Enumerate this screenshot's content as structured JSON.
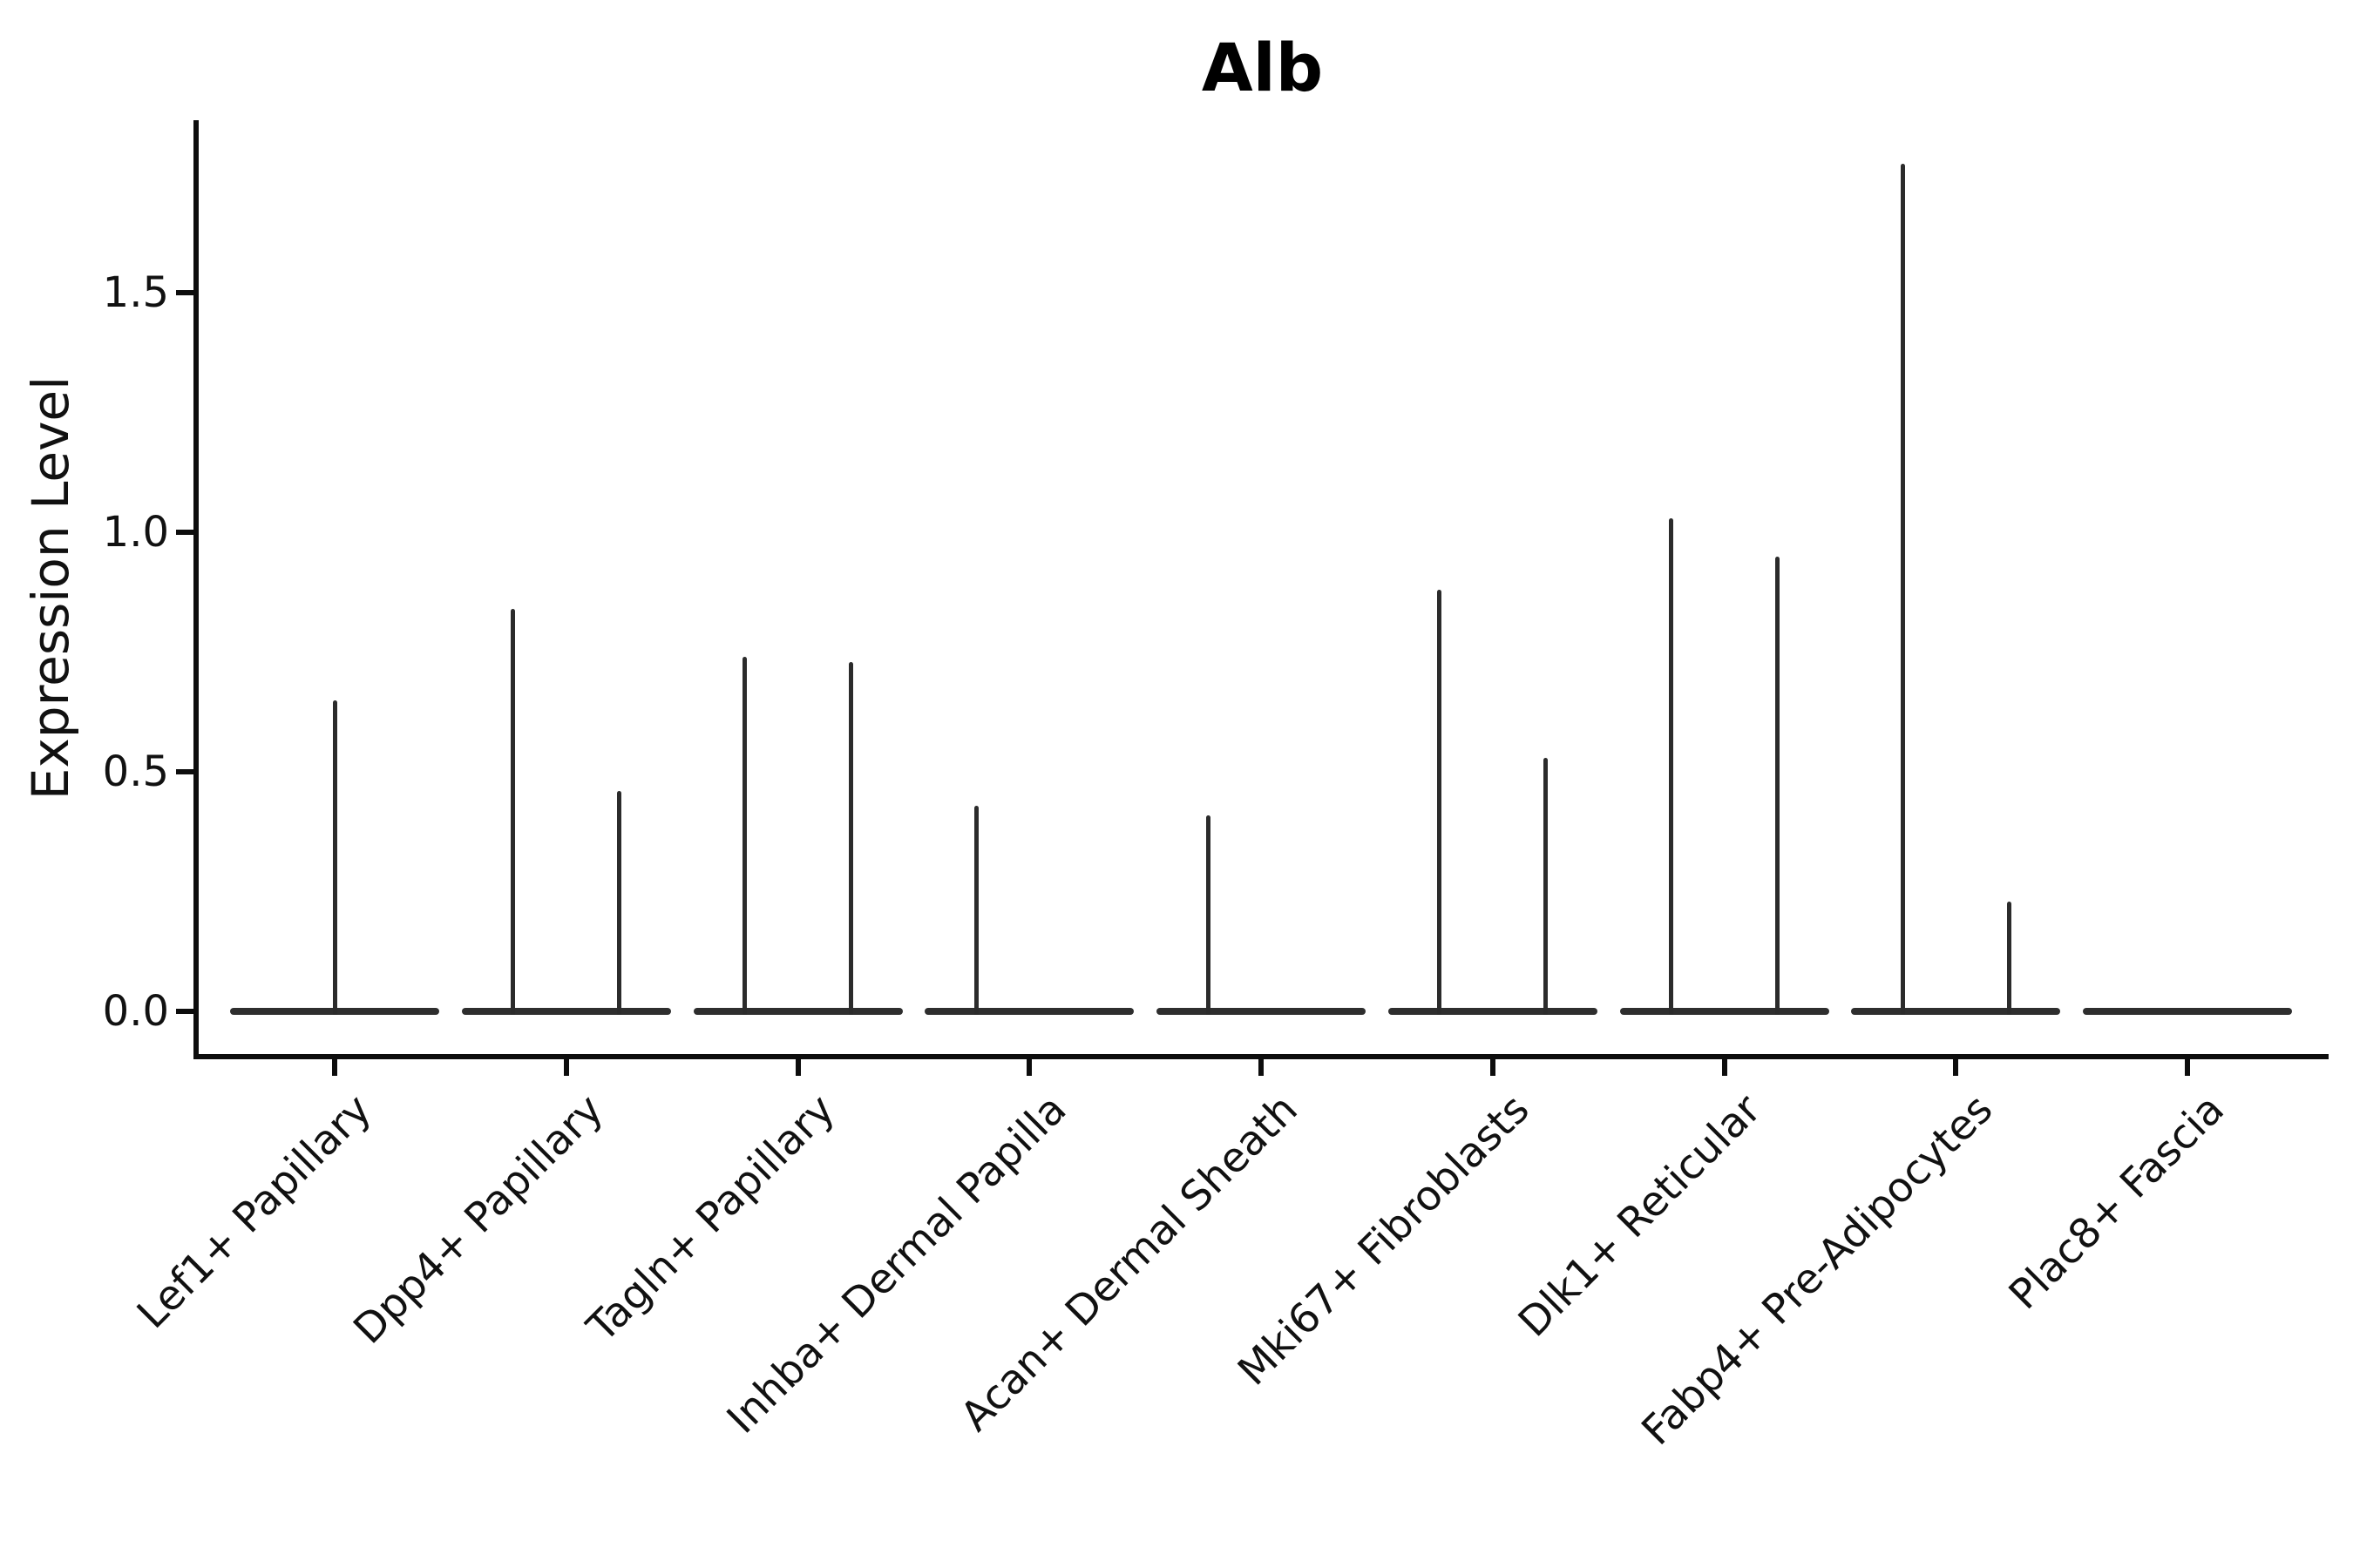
{
  "chart_data": {
    "type": "violin",
    "title": "Alb",
    "xlabel": "",
    "ylabel": "Expression Level",
    "y_ticks": [
      0.0,
      0.5,
      1.0,
      1.5
    ],
    "y_tick_labels": [
      "0.0",
      "0.5",
      "1.0",
      "1.5"
    ],
    "ylim": [
      -0.09,
      1.86
    ],
    "grid": false,
    "legend": "none",
    "style_notes": {
      "ink_color": "#0d0d0d",
      "violin_stroke_color": "#2b2b2b",
      "background": "#ffffff",
      "x_label_rotation_deg": 45
    },
    "categories": [
      "Lef1+ Papillary",
      "Dpp4+ Papillary",
      "Tagln+ Papillary",
      "Inhba+ Dermal Papilla",
      "Acan+ Dermal Sheath",
      "Mki67+ Fibroblasts",
      "Dlk1+ Reticular",
      "Fabp4+ Pre-Adipocytes",
      "Plac8+ Fascia"
    ],
    "series": [
      {
        "category": "Lef1+ Papillary",
        "baseline_value": 0,
        "spikes": [
          {
            "position": "center",
            "max_expression": 0.65
          }
        ]
      },
      {
        "category": "Dpp4+ Papillary",
        "baseline_value": 0,
        "spikes": [
          {
            "position": "left",
            "max_expression": 0.84
          },
          {
            "position": "right",
            "max_expression": 0.46
          }
        ]
      },
      {
        "category": "Tagln+ Papillary",
        "baseline_value": 0,
        "spikes": [
          {
            "position": "left",
            "max_expression": 0.74
          },
          {
            "position": "right",
            "max_expression": 0.73
          }
        ]
      },
      {
        "category": "Inhba+ Dermal Papilla",
        "baseline_value": 0,
        "spikes": [
          {
            "position": "left",
            "max_expression": 0.43
          }
        ]
      },
      {
        "category": "Acan+ Dermal Sheath",
        "baseline_value": 0,
        "spikes": [
          {
            "position": "left",
            "max_expression": 0.41
          }
        ]
      },
      {
        "category": "Mki67+ Fibroblasts",
        "baseline_value": 0,
        "spikes": [
          {
            "position": "left",
            "max_expression": 0.88
          },
          {
            "position": "right",
            "max_expression": 0.53
          }
        ]
      },
      {
        "category": "Dlk1+ Reticular",
        "baseline_value": 0,
        "spikes": [
          {
            "position": "left",
            "max_expression": 1.03
          },
          {
            "position": "right",
            "max_expression": 0.95
          }
        ]
      },
      {
        "category": "Fabp4+ Pre-Adipocytes",
        "baseline_value": 0,
        "spikes": [
          {
            "position": "left",
            "max_expression": 1.77
          },
          {
            "position": "right",
            "max_expression": 0.23
          }
        ]
      },
      {
        "category": "Plac8+ Fascia",
        "baseline_value": 0,
        "spikes": []
      }
    ]
  }
}
